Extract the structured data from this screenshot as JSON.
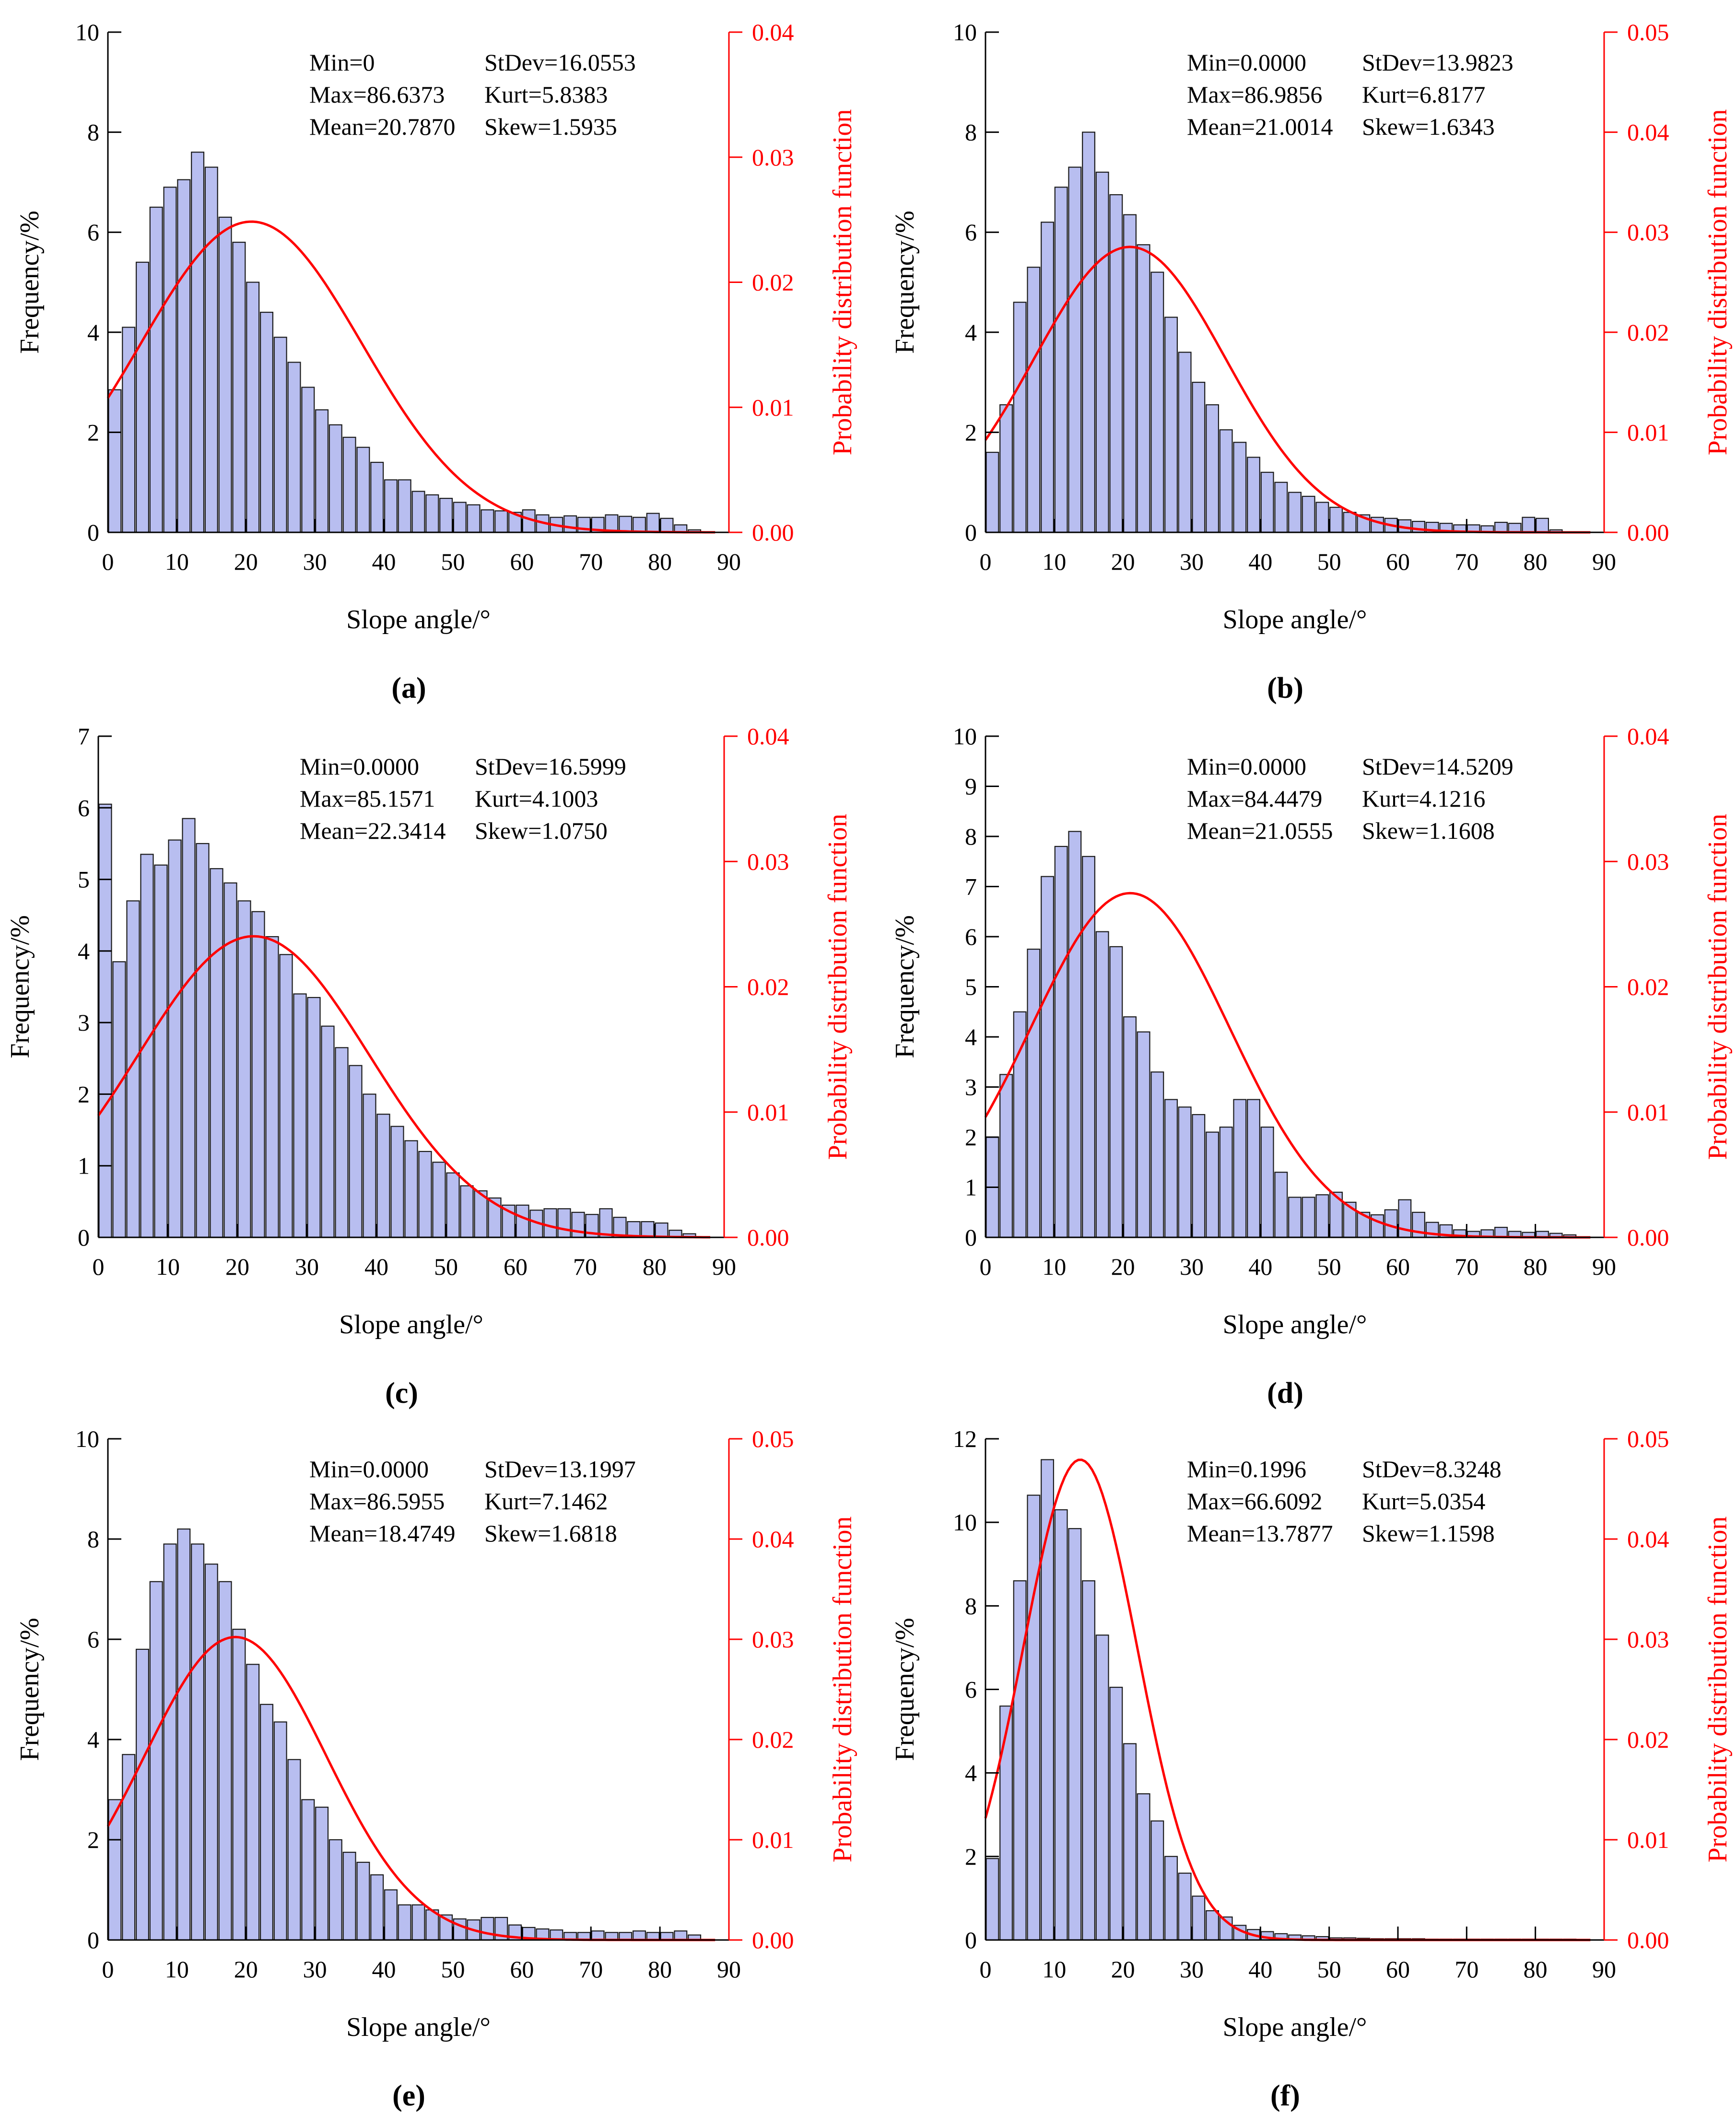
{
  "figure": {
    "x_label": "Slope angle/°",
    "y_label": "Frequency/%",
    "y2_label": "Probability distribution function"
  },
  "colors": {
    "bar_fill": "#B8BEF0",
    "bar_stroke": "#1a1a1a",
    "curve": "#FF0000",
    "axis": "#000000",
    "right_axis": "#FF0000"
  },
  "chart_data": [
    {
      "panel": "a",
      "panel_label": "(a)",
      "type": "bar",
      "title": "",
      "xlabel": "Slope angle/°",
      "ylabel": "Frequency/%",
      "y2label": "Probability distribution function",
      "xlim": [
        0,
        90
      ],
      "ylim": [
        0,
        10
      ],
      "y2lim": [
        0,
        0.04
      ],
      "xticks": [
        0,
        10,
        20,
        30,
        40,
        50,
        60,
        70,
        80,
        90
      ],
      "xticklabels": [
        "0",
        "10",
        "20",
        "30",
        "40",
        "50",
        "60",
        "70",
        "80",
        "90"
      ],
      "yticks": [
        0,
        2,
        4,
        6,
        8,
        10
      ],
      "yticklabels": [
        "0",
        "2",
        "4",
        "6",
        "8",
        "10"
      ],
      "y2ticks": [
        0,
        0.01,
        0.02,
        0.03,
        0.04
      ],
      "y2ticklabels": [
        "0.00",
        "0.01",
        "0.02",
        "0.03",
        "0.04"
      ],
      "bin_width": 2,
      "values": [
        2.85,
        4.1,
        5.4,
        6.5,
        6.9,
        7.05,
        7.6,
        7.3,
        6.3,
        5.8,
        5.0,
        4.4,
        3.9,
        3.4,
        2.9,
        2.45,
        2.15,
        1.9,
        1.7,
        1.4,
        1.05,
        1.05,
        0.82,
        0.75,
        0.68,
        0.6,
        0.55,
        0.45,
        0.43,
        0.4,
        0.45,
        0.35,
        0.3,
        0.33,
        0.3,
        0.3,
        0.35,
        0.32,
        0.3,
        0.38,
        0.28,
        0.15,
        0.05
      ],
      "stats": [
        [
          "Min=0",
          "StDev=16.0553"
        ],
        [
          "Max=86.6373",
          "Kurt=5.8383"
        ],
        [
          "Mean=20.7870",
          "Skew=1.5935"
        ]
      ],
      "fit": {
        "mean": 20.787,
        "stdev": 16.0553
      }
    },
    {
      "panel": "b",
      "panel_label": "(b)",
      "type": "bar",
      "title": "",
      "xlabel": "Slope angle/°",
      "ylabel": "Frequency/%",
      "y2label": "Probability distribution function",
      "xlim": [
        0,
        90
      ],
      "ylim": [
        0,
        10
      ],
      "y2lim": [
        0,
        0.05
      ],
      "xticks": [
        0,
        10,
        20,
        30,
        40,
        50,
        60,
        70,
        80,
        90
      ],
      "xticklabels": [
        "0",
        "10",
        "20",
        "30",
        "40",
        "50",
        "60",
        "70",
        "80",
        "90"
      ],
      "yticks": [
        0,
        2,
        4,
        6,
        8,
        10
      ],
      "yticklabels": [
        "0",
        "2",
        "4",
        "6",
        "8",
        "10"
      ],
      "y2ticks": [
        0,
        0.01,
        0.02,
        0.03,
        0.04,
        0.05
      ],
      "y2ticklabels": [
        "0.00",
        "0.01",
        "0.02",
        "0.03",
        "0.04",
        "0.05"
      ],
      "bin_width": 2,
      "values": [
        1.6,
        2.55,
        4.6,
        5.3,
        6.2,
        6.9,
        7.3,
        8.0,
        7.2,
        6.75,
        6.35,
        5.75,
        5.2,
        4.3,
        3.6,
        3.0,
        2.55,
        2.05,
        1.8,
        1.5,
        1.2,
        1.0,
        0.8,
        0.72,
        0.6,
        0.5,
        0.4,
        0.35,
        0.3,
        0.28,
        0.25,
        0.22,
        0.2,
        0.18,
        0.15,
        0.15,
        0.13,
        0.2,
        0.18,
        0.3,
        0.28,
        0.05
      ],
      "stats": [
        [
          "Min=0.0000",
          "StDev=13.9823"
        ],
        [
          "Max=86.9856",
          "Kurt=6.8177"
        ],
        [
          "Mean=21.0014",
          "Skew=1.6343"
        ]
      ],
      "fit": {
        "mean": 21.0014,
        "stdev": 13.9823
      }
    },
    {
      "panel": "c",
      "panel_label": "(c)",
      "type": "bar",
      "title": "",
      "xlabel": "Slope angle/°",
      "ylabel": "Frequency/%",
      "y2label": "Probability distribution function",
      "xlim": [
        0,
        90
      ],
      "ylim": [
        0,
        7
      ],
      "y2lim": [
        0,
        0.04
      ],
      "xticks": [
        0,
        10,
        20,
        30,
        40,
        50,
        60,
        70,
        80,
        90
      ],
      "xticklabels": [
        "0",
        "10",
        "20",
        "30",
        "40",
        "50",
        "60",
        "70",
        "80",
        "90"
      ],
      "yticks": [
        0,
        1,
        2,
        3,
        4,
        5,
        6,
        7
      ],
      "yticklabels": [
        "0",
        "1",
        "2",
        "3",
        "4",
        "5",
        "6",
        "7"
      ],
      "y2ticks": [
        0,
        0.01,
        0.02,
        0.03,
        0.04
      ],
      "y2ticklabels": [
        "0.00",
        "0.01",
        "0.02",
        "0.03",
        "0.04"
      ],
      "bin_width": 2,
      "values": [
        6.05,
        3.85,
        4.7,
        5.35,
        5.2,
        5.55,
        5.85,
        5.5,
        5.15,
        4.95,
        4.7,
        4.55,
        4.2,
        3.95,
        3.4,
        3.35,
        2.95,
        2.65,
        2.4,
        2.0,
        1.72,
        1.55,
        1.35,
        1.2,
        1.05,
        0.9,
        0.72,
        0.65,
        0.55,
        0.45,
        0.45,
        0.38,
        0.4,
        0.4,
        0.35,
        0.32,
        0.4,
        0.28,
        0.22,
        0.22,
        0.2,
        0.1,
        0.05
      ],
      "stats": [
        [
          "Min=0.0000",
          "StDev=16.5999"
        ],
        [
          "Max=85.1571",
          "Kurt=4.1003"
        ],
        [
          "Mean=22.3414",
          "Skew=1.0750"
        ]
      ],
      "fit": {
        "mean": 22.3414,
        "stdev": 16.5999
      }
    },
    {
      "panel": "d",
      "panel_label": "(d)",
      "type": "bar",
      "title": "",
      "xlabel": "Slope angle/°",
      "ylabel": "Frequency/%",
      "y2label": "Probability distribution function",
      "xlim": [
        0,
        90
      ],
      "ylim": [
        0,
        10
      ],
      "y2lim": [
        0,
        0.04
      ],
      "xticks": [
        0,
        10,
        20,
        30,
        40,
        50,
        60,
        70,
        80,
        90
      ],
      "xticklabels": [
        "0",
        "10",
        "20",
        "30",
        "40",
        "50",
        "60",
        "70",
        "80",
        "90"
      ],
      "yticks": [
        0,
        1,
        2,
        3,
        4,
        5,
        6,
        7,
        8,
        9,
        10
      ],
      "yticklabels": [
        "0",
        "1",
        "2",
        "3",
        "4",
        "5",
        "6",
        "7",
        "8",
        "9",
        "10"
      ],
      "y2ticks": [
        0,
        0.01,
        0.02,
        0.03,
        0.04
      ],
      "y2ticklabels": [
        "0.00",
        "0.01",
        "0.02",
        "0.03",
        "0.04"
      ],
      "bin_width": 2,
      "values": [
        2.0,
        3.25,
        4.5,
        5.75,
        7.2,
        7.8,
        8.1,
        7.6,
        6.1,
        5.8,
        4.4,
        4.1,
        3.3,
        2.75,
        2.6,
        2.45,
        2.1,
        2.2,
        2.75,
        2.75,
        2.2,
        1.3,
        0.8,
        0.8,
        0.85,
        0.9,
        0.7,
        0.5,
        0.45,
        0.55,
        0.75,
        0.5,
        0.3,
        0.25,
        0.15,
        0.12,
        0.15,
        0.2,
        0.12,
        0.1,
        0.12,
        0.08,
        0.05
      ],
      "stats": [
        [
          "Min=0.0000",
          "StDev=14.5209"
        ],
        [
          "Max=84.4479",
          "Kurt=4.1216"
        ],
        [
          "Mean=21.0555",
          "Skew=1.1608"
        ]
      ],
      "fit": {
        "mean": 21.0555,
        "stdev": 14.5209
      }
    },
    {
      "panel": "e",
      "panel_label": "(e)",
      "type": "bar",
      "title": "",
      "xlabel": "Slope angle/°",
      "ylabel": "Frequency/%",
      "y2label": "Probability distribution function",
      "xlim": [
        0,
        90
      ],
      "ylim": [
        0,
        10
      ],
      "y2lim": [
        0,
        0.05
      ],
      "xticks": [
        0,
        10,
        20,
        30,
        40,
        50,
        60,
        70,
        80,
        90
      ],
      "xticklabels": [
        "0",
        "10",
        "20",
        "30",
        "40",
        "50",
        "60",
        "70",
        "80",
        "90"
      ],
      "yticks": [
        0,
        2,
        4,
        6,
        8,
        10
      ],
      "yticklabels": [
        "0",
        "2",
        "4",
        "6",
        "8",
        "10"
      ],
      "y2ticks": [
        0,
        0.01,
        0.02,
        0.03,
        0.04,
        0.05
      ],
      "y2ticklabels": [
        "0.00",
        "0.01",
        "0.02",
        "0.03",
        "0.04",
        "0.05"
      ],
      "bin_width": 2,
      "values": [
        2.8,
        3.7,
        5.8,
        7.15,
        7.9,
        8.2,
        7.9,
        7.5,
        7.15,
        6.2,
        5.5,
        4.7,
        4.35,
        3.6,
        2.8,
        2.65,
        2.0,
        1.75,
        1.55,
        1.3,
        1.0,
        0.7,
        0.7,
        0.6,
        0.5,
        0.42,
        0.4,
        0.45,
        0.45,
        0.3,
        0.25,
        0.22,
        0.2,
        0.15,
        0.15,
        0.18,
        0.15,
        0.15,
        0.18,
        0.15,
        0.15,
        0.18,
        0.1
      ],
      "stats": [
        [
          "Min=0.0000",
          "StDev=13.1997"
        ],
        [
          "Max=86.5955",
          "Kurt=7.1462"
        ],
        [
          "Mean=18.4749",
          "Skew=1.6818"
        ]
      ],
      "fit": {
        "mean": 18.4749,
        "stdev": 13.1997
      }
    },
    {
      "panel": "f",
      "panel_label": "(f)",
      "type": "bar",
      "title": "",
      "xlabel": "Slope angle/°",
      "ylabel": "Frequency/%",
      "y2label": "Probability distribution function",
      "xlim": [
        0,
        90
      ],
      "ylim": [
        0,
        12
      ],
      "y2lim": [
        0,
        0.05
      ],
      "xticks": [
        0,
        10,
        20,
        30,
        40,
        50,
        60,
        70,
        80,
        90
      ],
      "xticklabels": [
        "0",
        "10",
        "20",
        "30",
        "40",
        "50",
        "60",
        "70",
        "80",
        "90"
      ],
      "yticks": [
        0,
        2,
        4,
        6,
        8,
        10,
        12
      ],
      "yticklabels": [
        "0",
        "2",
        "4",
        "6",
        "8",
        "10",
        "12"
      ],
      "y2ticks": [
        0,
        0.01,
        0.02,
        0.03,
        0.04,
        0.05
      ],
      "y2ticklabels": [
        "0.00",
        "0.01",
        "0.02",
        "0.03",
        "0.04",
        "0.05"
      ],
      "bin_width": 2,
      "values": [
        1.95,
        5.6,
        8.6,
        10.65,
        11.5,
        10.3,
        9.85,
        8.6,
        7.3,
        6.05,
        4.7,
        3.5,
        2.85,
        2.0,
        1.6,
        1.05,
        0.7,
        0.55,
        0.35,
        0.25,
        0.2,
        0.15,
        0.12,
        0.1,
        0.08,
        0.05,
        0.05,
        0.04,
        0.03,
        0.03,
        0.03,
        0.03,
        0.02,
        0.02,
        0.02,
        0.02,
        0.02,
        0.02,
        0.02,
        0.02,
        0.02,
        0.02,
        0.02
      ],
      "stats": [
        [
          "Min=0.1996",
          "StDev=8.3248"
        ],
        [
          "Max=66.6092",
          "Kurt=5.0354"
        ],
        [
          "Mean=13.7877",
          "Skew=1.1598"
        ]
      ],
      "fit": {
        "mean": 13.7877,
        "stdev": 8.3248
      }
    }
  ]
}
